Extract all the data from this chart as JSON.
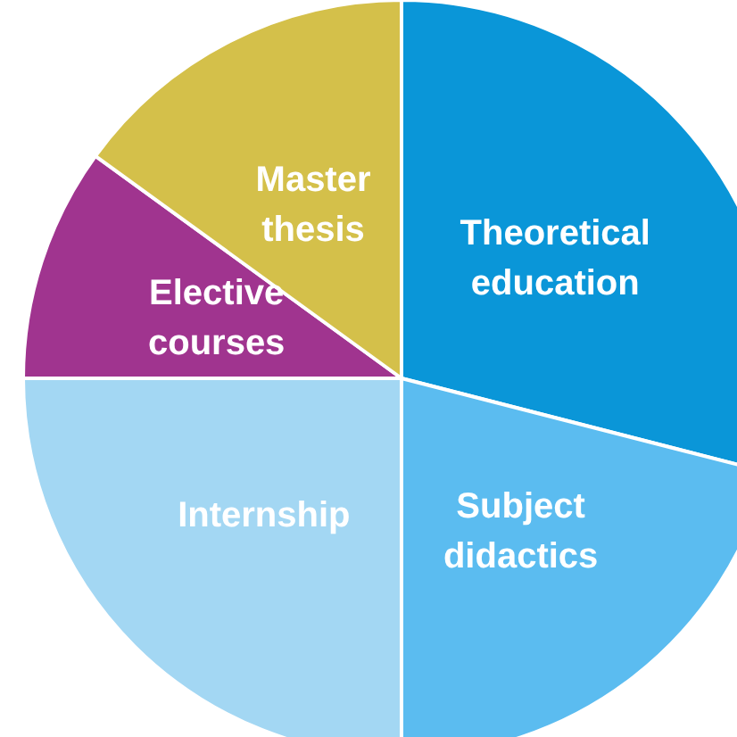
{
  "chart_data": {
    "type": "pie",
    "categories": [
      "Theoretical\neducation",
      "Subject\ndidactics",
      "Internship",
      "Elective\ncourses",
      "Master\nthesis"
    ],
    "values": [
      29,
      21,
      25,
      10,
      15
    ],
    "colors": [
      "#0a96d8",
      "#5bbcf0",
      "#a3d7f3",
      "#a0348f",
      "#d4c04a"
    ],
    "legend": false
  }
}
